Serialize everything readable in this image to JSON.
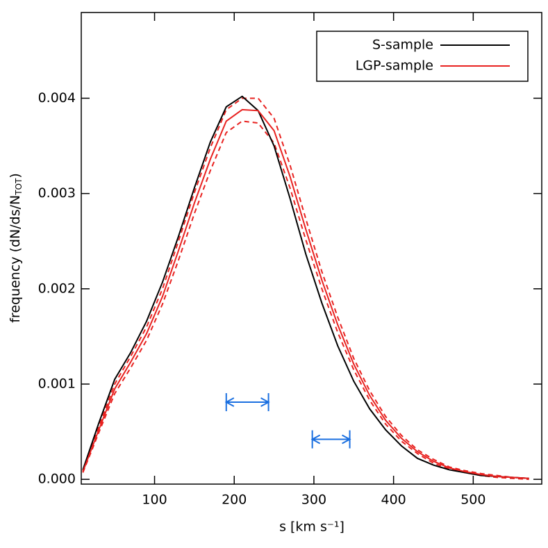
{
  "chart_data": {
    "type": "line",
    "x_label": "s [km s⁻¹]",
    "y_label_parts": [
      "frequency (dN/ds/N",
      "TOT",
      ")"
    ],
    "x": [
      10,
      30,
      50,
      70,
      90,
      110,
      130,
      150,
      170,
      190,
      210,
      230,
      250,
      270,
      290,
      310,
      330,
      350,
      370,
      390,
      410,
      430,
      450,
      470,
      490,
      510,
      530,
      550,
      570
    ],
    "series": [
      {
        "name": "S-sample",
        "color": "#000000",
        "values": [
          0.0001,
          0.00059,
          0.00105,
          0.00133,
          0.00166,
          0.00207,
          0.00255,
          0.00306,
          0.00354,
          0.00391,
          0.00402,
          0.00387,
          0.0035,
          0.00295,
          0.00236,
          0.00185,
          0.0014,
          0.00103,
          0.00074,
          0.00052,
          0.00035,
          0.00022,
          0.00015,
          0.0001,
          7e-05,
          4e-05,
          3e-05,
          2e-05,
          1e-05
        ]
      },
      {
        "name": "LGP-sample",
        "color": "#e8211f",
        "values": [
          8e-05,
          0.00052,
          0.00095,
          0.00123,
          0.00153,
          0.00192,
          0.0024,
          0.0029,
          0.00336,
          0.00376,
          0.00388,
          0.00387,
          0.00366,
          0.00318,
          0.00262,
          0.00209,
          0.00162,
          0.00121,
          0.00088,
          0.00062,
          0.00043,
          0.00029,
          0.00019,
          0.00012,
          8e-05,
          5e-05,
          3e-05,
          2e-05,
          1e-05
        ]
      }
    ],
    "band": {
      "color": "#e8211f",
      "upper": [
        9e-05,
        0.00055,
        0.001,
        0.00129,
        0.0016,
        0.002,
        0.0025,
        0.00301,
        0.00348,
        0.00388,
        0.004,
        0.004,
        0.00379,
        0.0033,
        0.00273,
        0.00218,
        0.0017,
        0.00127,
        0.00093,
        0.00066,
        0.00046,
        0.00031,
        0.00021,
        0.00013,
        9e-05,
        6e-05,
        4e-05,
        2e-05,
        1e-05
      ],
      "lower": [
        7e-05,
        0.00049,
        0.0009,
        0.00117,
        0.00146,
        0.00184,
        0.0023,
        0.00279,
        0.00324,
        0.00364,
        0.00376,
        0.00374,
        0.00353,
        0.00306,
        0.00251,
        0.002,
        0.00154,
        0.00115,
        0.00083,
        0.00058,
        0.0004,
        0.00027,
        0.00017,
        0.00011,
        7e-05,
        4e-05,
        2e-05,
        1e-05,
        0
      ]
    },
    "intervals": {
      "color": "#1a6fe0",
      "items": [
        {
          "x": [
            190,
            243
          ],
          "y": 0.00081
        },
        {
          "x": [
            298,
            345
          ],
          "y": 0.00042
        }
      ]
    },
    "xlim": [
      8,
      586
    ],
    "ylim": [
      -5e-05,
      0.0049
    ],
    "xticks": [
      100,
      200,
      300,
      400,
      500
    ],
    "yticks": [
      {
        "value": 0,
        "label": "0.000"
      },
      0.001,
      0.002,
      0.003,
      0.004
    ],
    "legend": "upper right"
  }
}
